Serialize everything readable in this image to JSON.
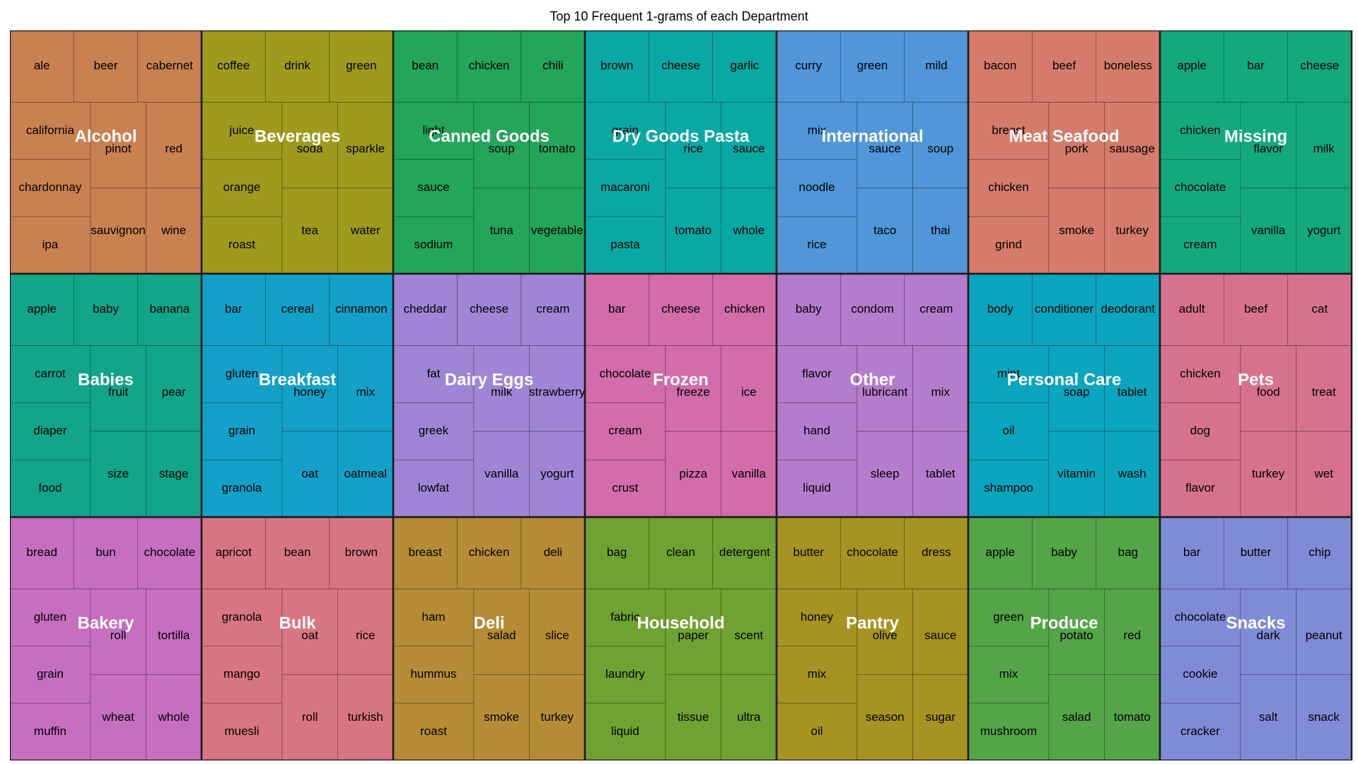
{
  "chart_data": {
    "type": "treemap",
    "title": "Top 10 Frequent 1-grams of each Department",
    "departments": [
      {
        "name": "Alcohol",
        "color": "#C98152",
        "words": [
          "ale",
          "beer",
          "cabernet",
          "california",
          "chardonnay",
          "ipa",
          "pinot",
          "red",
          "sauvignon",
          "wine"
        ]
      },
      {
        "name": "Beverages",
        "color": "#9E9A1E",
        "words": [
          "coffee",
          "drink",
          "green",
          "juice",
          "orange",
          "roast",
          "soda",
          "sparkle",
          "tea",
          "water"
        ]
      },
      {
        "name": "Canned Goods",
        "color": "#23A55A",
        "words": [
          "bean",
          "chicken",
          "chili",
          "light",
          "sauce",
          "sodium",
          "soup",
          "tomato",
          "tuna",
          "vegetable"
        ]
      },
      {
        "name": "Dry Goods Pasta",
        "color": "#0AA8A3",
        "words": [
          "brown",
          "cheese",
          "garlic",
          "grain",
          "macaroni",
          "pasta",
          "rice",
          "sauce",
          "tomato",
          "whole"
        ]
      },
      {
        "name": "International",
        "color": "#5096D8",
        "words": [
          "curry",
          "green",
          "mild",
          "mix",
          "noodle",
          "rice",
          "sauce",
          "soup",
          "taco",
          "thai"
        ]
      },
      {
        "name": "Meat Seafood",
        "color": "#D57B6B",
        "words": [
          "bacon",
          "beef",
          "boneless",
          "breast",
          "chicken",
          "grind",
          "pork",
          "sausage",
          "smoke",
          "turkey"
        ]
      },
      {
        "name": "Missing",
        "color": "#14A97C",
        "words": [
          "apple",
          "bar",
          "cheese",
          "chicken",
          "chocolate",
          "cream",
          "flavor",
          "milk",
          "vanilla",
          "yogurt"
        ]
      },
      {
        "name": "Babies",
        "color": "#12A58A",
        "words": [
          "apple",
          "baby",
          "banana",
          "carrot",
          "diaper",
          "food",
          "fruit",
          "pear",
          "size",
          "stage"
        ]
      },
      {
        "name": "Breakfast",
        "color": "#14A1C9",
        "words": [
          "bar",
          "cereal",
          "cinnamon",
          "gluten",
          "grain",
          "granola",
          "honey",
          "mix",
          "oat",
          "oatmeal"
        ]
      },
      {
        "name": "Dairy Eggs",
        "color": "#A085D6",
        "words": [
          "cheddar",
          "cheese",
          "cream",
          "fat",
          "greek",
          "lowfat",
          "milk",
          "strawberry",
          "vanilla",
          "yogurt"
        ]
      },
      {
        "name": "Frozen",
        "color": "#D26CAA",
        "words": [
          "bar",
          "cheese",
          "chicken",
          "chocolate",
          "cream",
          "crust",
          "freeze",
          "ice",
          "pizza",
          "vanilla"
        ]
      },
      {
        "name": "Other",
        "color": "#B47CCC",
        "words": [
          "baby",
          "condom",
          "cream",
          "flavor",
          "hand",
          "liquid",
          "lubricant",
          "mix",
          "sleep",
          "tablet"
        ]
      },
      {
        "name": "Personal Care",
        "color": "#0AA5BE",
        "words": [
          "body",
          "conditioner",
          "deodorant",
          "mint",
          "oil",
          "shampoo",
          "soap",
          "tablet",
          "vitamin",
          "wash"
        ]
      },
      {
        "name": "Pets",
        "color": "#D6728F",
        "words": [
          "adult",
          "beef",
          "cat",
          "chicken",
          "dog",
          "flavor",
          "food",
          "treat",
          "turkey",
          "wet"
        ]
      },
      {
        "name": "Bakery",
        "color": "#C66FC1",
        "words": [
          "bread",
          "bun",
          "chocolate",
          "gluten",
          "grain",
          "muffin",
          "roll",
          "tortilla",
          "wheat",
          "whole"
        ]
      },
      {
        "name": "Bulk",
        "color": "#D87582",
        "words": [
          "apricot",
          "bean",
          "brown",
          "granola",
          "mango",
          "muesli",
          "oat",
          "rice",
          "roll",
          "turkish"
        ]
      },
      {
        "name": "Deli",
        "color": "#B68C37",
        "words": [
          "breast",
          "chicken",
          "deli",
          "ham",
          "hummus",
          "roast",
          "salad",
          "slice",
          "smoke",
          "turkey"
        ]
      },
      {
        "name": "Household",
        "color": "#6FA232",
        "words": [
          "bag",
          "clean",
          "detergent",
          "fabric",
          "laundry",
          "liquid",
          "paper",
          "scent",
          "tissue",
          "ultra"
        ]
      },
      {
        "name": "Pantry",
        "color": "#A69322",
        "words": [
          "butter",
          "chocolate",
          "dress",
          "honey",
          "mix",
          "oil",
          "olive",
          "sauce",
          "season",
          "sugar"
        ]
      },
      {
        "name": "Produce",
        "color": "#54A448",
        "words": [
          "apple",
          "baby",
          "bag",
          "green",
          "mix",
          "mushroom",
          "potato",
          "red",
          "salad",
          "tomato"
        ]
      },
      {
        "name": "Snacks",
        "color": "#7F8BD7",
        "words": [
          "bar",
          "butter",
          "chip",
          "chocolate",
          "cookie",
          "cracker",
          "dark",
          "peanut",
          "salt",
          "snack"
        ]
      }
    ]
  }
}
